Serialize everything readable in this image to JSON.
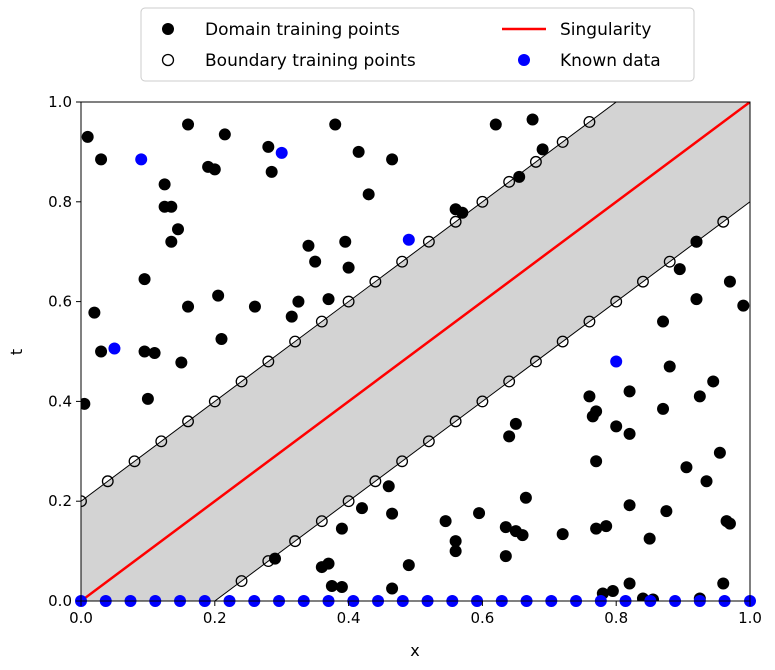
{
  "chart_data": {
    "type": "scatter",
    "xlabel": "x",
    "ylabel": "t",
    "xlim": [
      0,
      1
    ],
    "ylim": [
      0,
      1
    ],
    "xticks": [
      "0.0",
      "0.2",
      "0.4",
      "0.6",
      "0.8",
      "1.0"
    ],
    "yticks": [
      "0.0",
      "0.2",
      "0.4",
      "0.6",
      "0.8",
      "1.0"
    ],
    "grid": false,
    "legend_position": "top-center",
    "band": {
      "lower_line": {
        "x": [
          0.2,
          1.0
        ],
        "y": [
          0.0,
          0.8
        ]
      },
      "upper_line": {
        "x": [
          0.0,
          0.8
        ],
        "y": [
          0.2,
          1.0
        ]
      },
      "fill_color": "#d3d3d3"
    },
    "series": [
      {
        "name": "Domain training points",
        "style": "filled-black",
        "color": "#000000",
        "points": [
          [
            0.01,
            0.93
          ],
          [
            0.03,
            0.885
          ],
          [
            0.005,
            0.395
          ],
          [
            0.02,
            0.578
          ],
          [
            0.03,
            0.5
          ],
          [
            0.1,
            0.405
          ],
          [
            0.095,
            0.645
          ],
          [
            0.095,
            0.5
          ],
          [
            0.11,
            0.497
          ],
          [
            0.125,
            0.79
          ],
          [
            0.125,
            0.835
          ],
          [
            0.135,
            0.79
          ],
          [
            0.135,
            0.72
          ],
          [
            0.145,
            0.745
          ],
          [
            0.15,
            0.478
          ],
          [
            0.16,
            0.955
          ],
          [
            0.16,
            0.59
          ],
          [
            0.19,
            0.87
          ],
          [
            0.2,
            0.865
          ],
          [
            0.205,
            0.612
          ],
          [
            0.21,
            0.525
          ],
          [
            0.215,
            0.935
          ],
          [
            0.26,
            0.59
          ],
          [
            0.28,
            0.91
          ],
          [
            0.285,
            0.86
          ],
          [
            0.315,
            0.57
          ],
          [
            0.325,
            0.6
          ],
          [
            0.34,
            0.712
          ],
          [
            0.35,
            0.68
          ],
          [
            0.37,
            0.605
          ],
          [
            0.38,
            0.955
          ],
          [
            0.395,
            0.72
          ],
          [
            0.4,
            0.668
          ],
          [
            0.415,
            0.9
          ],
          [
            0.43,
            0.815
          ],
          [
            0.465,
            0.885
          ],
          [
            0.56,
            0.785
          ],
          [
            0.57,
            0.778
          ],
          [
            0.62,
            0.955
          ],
          [
            0.655,
            0.85
          ],
          [
            0.675,
            0.965
          ],
          [
            0.69,
            0.905
          ],
          [
            0.76,
            0.41
          ],
          [
            0.765,
            0.37
          ],
          [
            0.77,
            0.38
          ],
          [
            0.77,
            0.28
          ],
          [
            0.77,
            0.145
          ],
          [
            0.785,
            0.15
          ],
          [
            0.8,
            0.35
          ],
          [
            0.82,
            0.42
          ],
          [
            0.82,
            0.335
          ],
          [
            0.82,
            0.192
          ],
          [
            0.85,
            0.125
          ],
          [
            0.87,
            0.56
          ],
          [
            0.87,
            0.385
          ],
          [
            0.88,
            0.47
          ],
          [
            0.875,
            0.18
          ],
          [
            0.895,
            0.665
          ],
          [
            0.905,
            0.268
          ],
          [
            0.92,
            0.605
          ],
          [
            0.92,
            0.72
          ],
          [
            0.925,
            0.41
          ],
          [
            0.935,
            0.24
          ],
          [
            0.945,
            0.44
          ],
          [
            0.955,
            0.297
          ],
          [
            0.96,
            0.035
          ],
          [
            0.965,
            0.16
          ],
          [
            0.97,
            0.155
          ],
          [
            0.97,
            0.64
          ],
          [
            0.99,
            0.592
          ],
          [
            0.29,
            0.085
          ],
          [
            0.36,
            0.068
          ],
          [
            0.37,
            0.075
          ],
          [
            0.375,
            0.03
          ],
          [
            0.39,
            0.028
          ],
          [
            0.39,
            0.145
          ],
          [
            0.42,
            0.186
          ],
          [
            0.46,
            0.23
          ],
          [
            0.465,
            0.175
          ],
          [
            0.465,
            0.025
          ],
          [
            0.49,
            0.072
          ],
          [
            0.545,
            0.16
          ],
          [
            0.56,
            0.12
          ],
          [
            0.56,
            0.1
          ],
          [
            0.595,
            0.176
          ],
          [
            0.635,
            0.148
          ],
          [
            0.635,
            0.09
          ],
          [
            0.64,
            0.33
          ],
          [
            0.65,
            0.355
          ],
          [
            0.65,
            0.14
          ],
          [
            0.66,
            0.132
          ],
          [
            0.665,
            0.207
          ],
          [
            0.72,
            0.134
          ],
          [
            0.78,
            0.015
          ],
          [
            0.795,
            0.02
          ],
          [
            0.82,
            0.035
          ],
          [
            0.84,
            0.005
          ],
          [
            0.855,
            0.003
          ],
          [
            0.925,
            0.005
          ]
        ]
      },
      {
        "name": "Boundary training points",
        "style": "hollow",
        "color": "#000000",
        "points": [
          [
            0.0,
            0.2
          ],
          [
            0.04,
            0.24
          ],
          [
            0.08,
            0.28
          ],
          [
            0.12,
            0.32
          ],
          [
            0.16,
            0.36
          ],
          [
            0.2,
            0.4
          ],
          [
            0.24,
            0.44
          ],
          [
            0.28,
            0.48
          ],
          [
            0.32,
            0.52
          ],
          [
            0.36,
            0.56
          ],
          [
            0.4,
            0.6
          ],
          [
            0.44,
            0.64
          ],
          [
            0.48,
            0.68
          ],
          [
            0.52,
            0.72
          ],
          [
            0.56,
            0.76
          ],
          [
            0.6,
            0.8
          ],
          [
            0.64,
            0.84
          ],
          [
            0.68,
            0.88
          ],
          [
            0.72,
            0.92
          ],
          [
            0.76,
            0.96
          ],
          [
            0.24,
            0.04
          ],
          [
            0.28,
            0.08
          ],
          [
            0.32,
            0.12
          ],
          [
            0.36,
            0.16
          ],
          [
            0.4,
            0.2
          ],
          [
            0.44,
            0.24
          ],
          [
            0.48,
            0.28
          ],
          [
            0.52,
            0.32
          ],
          [
            0.56,
            0.36
          ],
          [
            0.6,
            0.4
          ],
          [
            0.64,
            0.44
          ],
          [
            0.68,
            0.48
          ],
          [
            0.72,
            0.52
          ],
          [
            0.76,
            0.56
          ],
          [
            0.8,
            0.6
          ],
          [
            0.84,
            0.64
          ],
          [
            0.88,
            0.68
          ],
          [
            0.92,
            0.72
          ],
          [
            0.96,
            0.76
          ]
        ]
      },
      {
        "name": "Singularity",
        "style": "line",
        "color": "#ff0000",
        "x": [
          0.0,
          1.0
        ],
        "y": [
          0.0,
          1.0
        ]
      },
      {
        "name": "Known data",
        "style": "filled-blue",
        "color": "#0000ff",
        "points": [
          [
            0.09,
            0.885
          ],
          [
            0.3,
            0.898
          ],
          [
            0.49,
            0.724
          ],
          [
            0.05,
            0.506
          ],
          [
            0.8,
            0.48
          ],
          [
            0.0,
            0.0
          ],
          [
            0.037,
            0.0
          ],
          [
            0.074,
            0.0
          ],
          [
            0.111,
            0.0
          ],
          [
            0.148,
            0.0
          ],
          [
            0.185,
            0.0
          ],
          [
            0.222,
            0.0
          ],
          [
            0.259,
            0.0
          ],
          [
            0.296,
            0.0
          ],
          [
            0.333,
            0.0
          ],
          [
            0.37,
            0.0
          ],
          [
            0.407,
            0.0
          ],
          [
            0.444,
            0.0
          ],
          [
            0.481,
            0.0
          ],
          [
            0.518,
            0.0
          ],
          [
            0.555,
            0.0
          ],
          [
            0.592,
            0.0
          ],
          [
            0.629,
            0.0
          ],
          [
            0.666,
            0.0
          ],
          [
            0.703,
            0.0
          ],
          [
            0.74,
            0.0
          ],
          [
            0.777,
            0.0
          ],
          [
            0.814,
            0.0
          ],
          [
            0.851,
            0.0
          ],
          [
            0.888,
            0.0
          ],
          [
            0.925,
            0.0
          ],
          [
            0.962,
            0.0
          ],
          [
            1.0,
            0.0
          ]
        ]
      }
    ]
  }
}
